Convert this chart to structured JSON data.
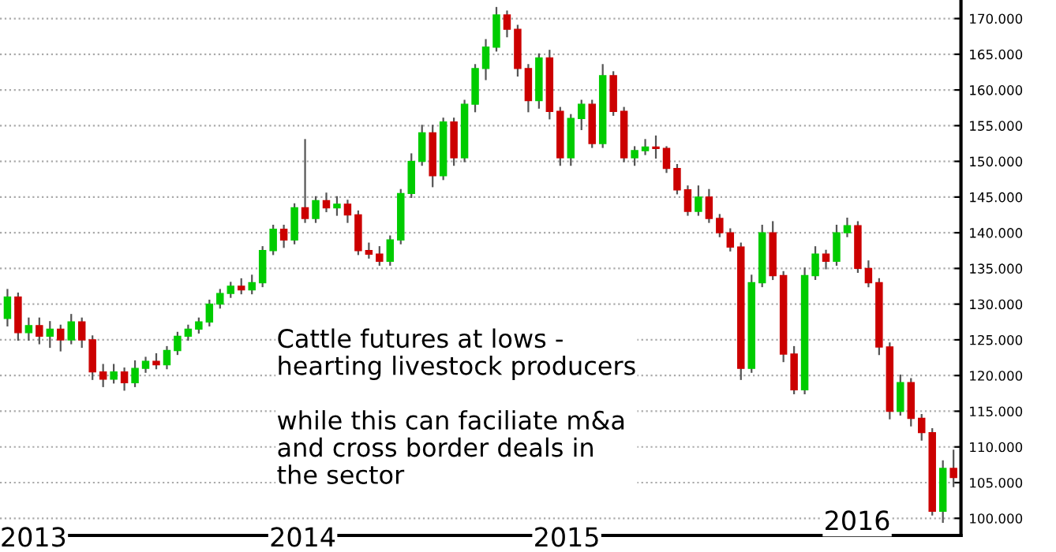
{
  "chart_data": {
    "type": "candlestick",
    "categories": [
      null,
      null,
      null,
      null,
      null,
      null,
      null,
      null,
      null,
      null,
      null,
      null,
      null,
      null,
      null,
      null,
      null,
      null,
      null,
      null,
      null,
      null,
      null,
      null,
      null,
      null,
      null,
      null,
      null,
      null,
      null,
      null,
      null,
      null,
      null,
      null,
      null,
      null,
      null,
      null,
      null,
      null,
      null,
      null,
      null,
      null,
      null,
      null,
      null,
      null,
      null,
      null,
      null,
      null,
      null,
      null,
      null,
      null,
      null,
      null,
      null,
      null,
      null,
      null,
      null,
      null,
      null,
      null,
      null,
      null,
      null,
      null,
      null,
      null,
      null,
      null,
      null,
      null,
      null,
      null,
      null,
      null,
      null,
      null,
      null,
      null,
      null,
      null,
      null,
      null
    ],
    "ohlc": [
      [
        128,
        132,
        127,
        131
      ],
      [
        131,
        131.5,
        125,
        126
      ],
      [
        126,
        128,
        125,
        127
      ],
      [
        127,
        128,
        124.5,
        125.5
      ],
      [
        125.5,
        127.5,
        124,
        126.5
      ],
      [
        126.5,
        127,
        123.5,
        125
      ],
      [
        125,
        128.5,
        124.5,
        127.5
      ],
      [
        127.5,
        128,
        124,
        125
      ],
      [
        125,
        125.5,
        119.5,
        120.5
      ],
      [
        120.5,
        121.5,
        118.5,
        119.5
      ],
      [
        119.5,
        121.5,
        119,
        120.5
      ],
      [
        120.5,
        121,
        118,
        119
      ],
      [
        119,
        122,
        118.5,
        121
      ],
      [
        121,
        122.5,
        120.5,
        122
      ],
      [
        122,
        123,
        121,
        121.5
      ],
      [
        121.5,
        124,
        121,
        123.5
      ],
      [
        123.5,
        126,
        123,
        125.5
      ],
      [
        125.5,
        127,
        125,
        126.5
      ],
      [
        126.5,
        128,
        126,
        127.5
      ],
      [
        127.5,
        130.5,
        127,
        130
      ],
      [
        130,
        132,
        129.5,
        131.5
      ],
      [
        131.5,
        133,
        131,
        132.5
      ],
      [
        132.5,
        133.5,
        131.5,
        132
      ],
      [
        132,
        134,
        131.5,
        133
      ],
      [
        133,
        138,
        132.5,
        137.5
      ],
      [
        137.5,
        141,
        137,
        140.5
      ],
      [
        140.5,
        141,
        138,
        139
      ],
      [
        139,
        144,
        138.5,
        143.5
      ],
      [
        143.5,
        153,
        141.5,
        142
      ],
      [
        142,
        145,
        141.5,
        144.5
      ],
      [
        144.5,
        145.5,
        143,
        143.5
      ],
      [
        143.5,
        145,
        142.5,
        144
      ],
      [
        144,
        144.5,
        141.5,
        142.5
      ],
      [
        142.5,
        143,
        137,
        137.5
      ],
      [
        137.5,
        138.5,
        136.5,
        137
      ],
      [
        137,
        138,
        135.5,
        136
      ],
      [
        136,
        139.5,
        135.5,
        139
      ],
      [
        139,
        146,
        138.5,
        145.5
      ],
      [
        145.5,
        151,
        145,
        150
      ],
      [
        150,
        155,
        149.5,
        154
      ],
      [
        154,
        155,
        146.5,
        148
      ],
      [
        148,
        156,
        147.5,
        155.5
      ],
      [
        155.5,
        156,
        149.5,
        150.5
      ],
      [
        150.5,
        158.5,
        150,
        158
      ],
      [
        158,
        163.5,
        157,
        163
      ],
      [
        163,
        167,
        161.5,
        166
      ],
      [
        166,
        171.5,
        165.5,
        170.5
      ],
      [
        170.5,
        171,
        167.5,
        168.5
      ],
      [
        168.5,
        169,
        162,
        163
      ],
      [
        163,
        163.5,
        157,
        158.5
      ],
      [
        158.5,
        165,
        157.5,
        164.5
      ],
      [
        164.5,
        165.5,
        156,
        157
      ],
      [
        157,
        157.5,
        149.5,
        150.5
      ],
      [
        150.5,
        156.5,
        149.5,
        156
      ],
      [
        156,
        158.5,
        154.5,
        158
      ],
      [
        158,
        158.5,
        152,
        152.5
      ],
      [
        152.5,
        163.5,
        152,
        162
      ],
      [
        162,
        162.5,
        156.5,
        157
      ],
      [
        157,
        157.5,
        150,
        150.5
      ],
      [
        150.5,
        152,
        149.5,
        151.5
      ],
      [
        151.5,
        153,
        151,
        152
      ],
      [
        152,
        153.5,
        150.5,
        151.8
      ],
      [
        151.8,
        152,
        148.5,
        149
      ],
      [
        149,
        149.5,
        145.5,
        146
      ],
      [
        146,
        146.5,
        142.5,
        143
      ],
      [
        143,
        146.5,
        142.5,
        145
      ],
      [
        145,
        146,
        141.5,
        142
      ],
      [
        142,
        142.5,
        139.5,
        140
      ],
      [
        140,
        140.5,
        137.5,
        138
      ],
      [
        138,
        138.5,
        119.5,
        121
      ],
      [
        121,
        134,
        120.5,
        133
      ],
      [
        133,
        141,
        132.5,
        140
      ],
      [
        140,
        141.5,
        133.5,
        134
      ],
      [
        134,
        134.5,
        122,
        123
      ],
      [
        123,
        124,
        117.5,
        118
      ],
      [
        118,
        135,
        117.5,
        134
      ],
      [
        134,
        138,
        133.5,
        137
      ],
      [
        137,
        137.5,
        135,
        136
      ],
      [
        136,
        141,
        135.5,
        140
      ],
      [
        140,
        142,
        139.5,
        141
      ],
      [
        141,
        141.5,
        134.5,
        135
      ],
      [
        135,
        136,
        132.5,
        133
      ],
      [
        133,
        133.5,
        123,
        124
      ],
      [
        124,
        124.5,
        114,
        115
      ],
      [
        115,
        120,
        114.5,
        119
      ],
      [
        119,
        119.5,
        113,
        114
      ],
      [
        114,
        114.5,
        111,
        112
      ],
      [
        112,
        112.5,
        100.5,
        101
      ],
      [
        101,
        108,
        99.5,
        107
      ],
      [
        107,
        109.5,
        104.5,
        105.7
      ]
    ],
    "ylim": [
      97.6,
      172.6
    ],
    "yticks": [
      {
        "value": 100,
        "label": "100.000"
      },
      {
        "value": 105,
        "label": "105.000"
      },
      {
        "value": 110,
        "label": "110.000"
      },
      {
        "value": 115,
        "label": "115.000"
      },
      {
        "value": 120,
        "label": "120.000"
      },
      {
        "value": 125,
        "label": "125.000"
      },
      {
        "value": 130,
        "label": "130.000"
      },
      {
        "value": 135,
        "label": "135.000"
      },
      {
        "value": 140,
        "label": "140.000"
      },
      {
        "value": 145,
        "label": "145.000"
      },
      {
        "value": 150,
        "label": "150.000"
      },
      {
        "value": 155,
        "label": "155.000"
      },
      {
        "value": 160,
        "label": "160.000"
      },
      {
        "value": 165,
        "label": "165.000"
      },
      {
        "value": 170,
        "label": "170.000"
      }
    ],
    "grid": "y",
    "tick_labels": "y",
    "annotations": [
      "Cattle futures at lows -\nhearting livestock producers\n\nwhile this can faciliate m&a\nand cross border deals in\nthe sector",
      "2013",
      "2014",
      "2015",
      "2016"
    ]
  }
}
